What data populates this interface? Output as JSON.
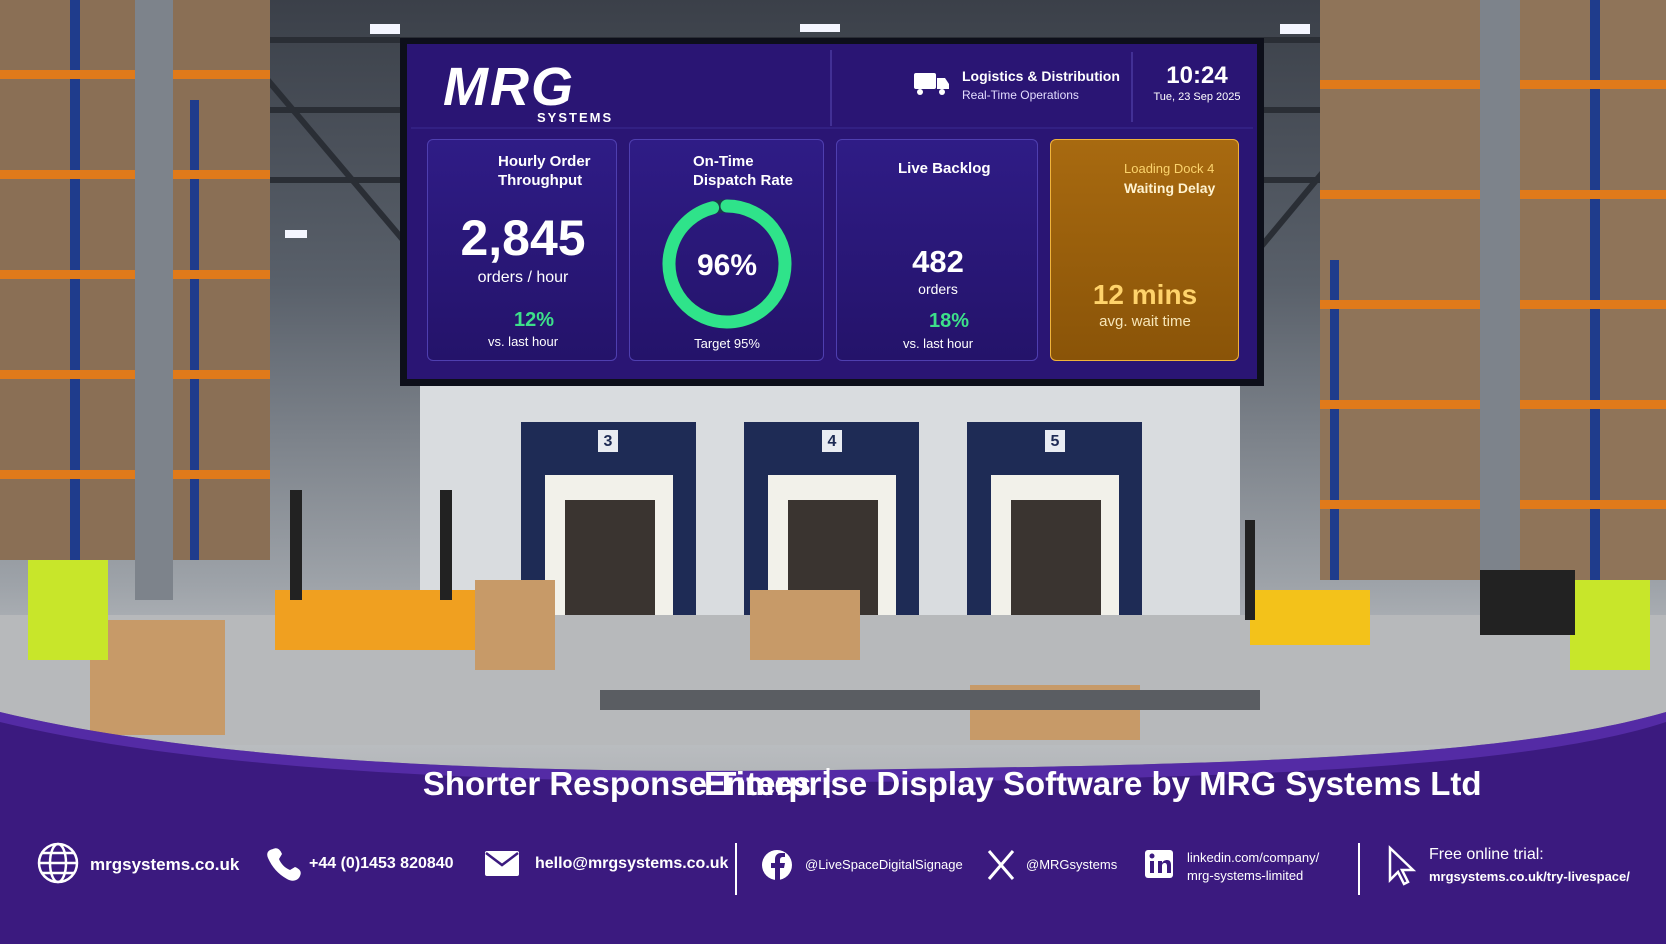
{
  "header": {
    "logo": "MRG",
    "logo_sub": "SYSTEMS",
    "sector": "Logistics & Distribution",
    "mode": "Real-Time Operations",
    "time": "10:24",
    "date": "Tue, 23 Sep 2025"
  },
  "cards": [
    {
      "title_lines": [
        "Hourly Order",
        "Throughput"
      ],
      "value": "2,845",
      "unit": "orders / hour",
      "change": "12%",
      "note": "vs. last hour"
    },
    {
      "title_lines": [
        "On-Time",
        "Dispatch Rate"
      ],
      "gauge": {
        "value": 96,
        "label": "96%"
      },
      "note": "Target 95%"
    },
    {
      "title_lines": [
        "Live Backlog"
      ],
      "value": "482",
      "unit": "orders",
      "change": "18%",
      "note": "vs. last hour"
    },
    {
      "title_lines": [
        "Loading Dock 4",
        "Waiting Delay"
      ],
      "value": "12 mins",
      "note": "avg. wait time"
    }
  ],
  "scene": {
    "dock_numbers": [
      "3",
      "4",
      "5"
    ]
  },
  "footer": {
    "tagline_parts": [
      "Shorter Response Times",
      "Enterprise Display Software by MRG Systems Ltd"
    ],
    "contacts": {
      "website": "mrgsystems.co.uk",
      "phone": "+44 (0)1453 820840",
      "email": "hello@mrgsystems.co.uk",
      "facebook": "@LiveSpaceDigitalSignage",
      "x": "@MRGsystems",
      "linkedin_lines": [
        "linkedin.com/company/",
        "mrg-systems-limited"
      ],
      "trial_label": "Free online trial:",
      "trial_url": "mrgsystems.co.uk/try-livespace/"
    }
  }
}
